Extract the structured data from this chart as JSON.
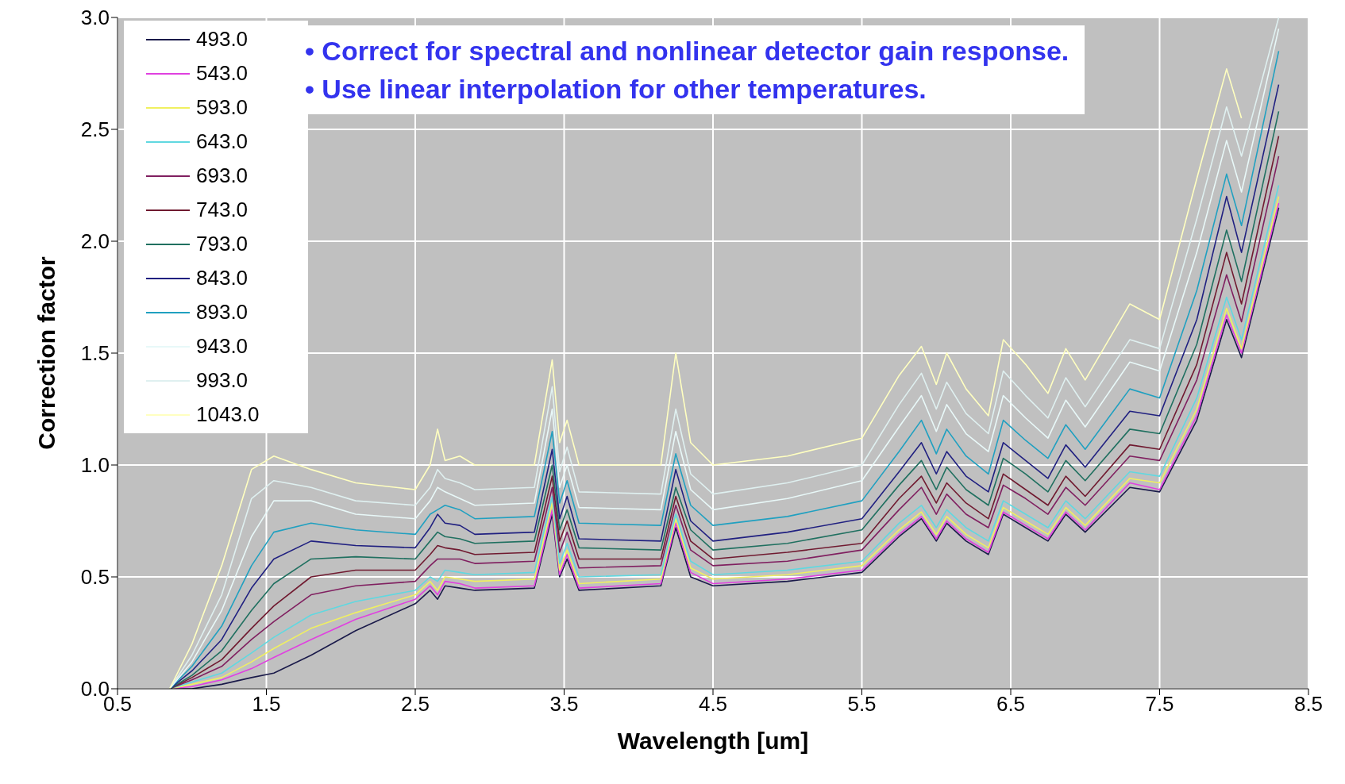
{
  "chart_data": {
    "type": "line",
    "xlabel": "Wavelength [um]",
    "ylabel": "Correction factor",
    "annotations": [
      "• Correct for spectral and nonlinear detector gain response.",
      "• Use linear interpolation for other temperatures."
    ],
    "x": [
      0.85,
      1.0,
      1.2,
      1.4,
      1.55,
      1.8,
      2.1,
      2.5,
      2.6,
      2.65,
      2.7,
      2.8,
      2.9,
      3.3,
      3.42,
      3.47,
      3.52,
      3.6,
      4.15,
      4.25,
      4.35,
      4.5,
      5.0,
      5.5,
      5.75,
      5.9,
      6.0,
      6.07,
      6.2,
      6.35,
      6.45,
      6.6,
      6.75,
      6.87,
      7.0,
      7.3,
      7.5,
      7.75,
      7.95,
      8.05,
      8.3
    ],
    "series": [
      {
        "name": "493.0",
        "color": "#1a1a4a",
        "values": [
          0,
          0,
          0.02,
          0.05,
          0.07,
          0.15,
          0.26,
          0.38,
          0.44,
          0.4,
          0.46,
          0.45,
          0.44,
          0.45,
          0.78,
          0.5,
          0.58,
          0.44,
          0.46,
          0.72,
          0.5,
          0.46,
          0.48,
          0.52,
          0.68,
          0.76,
          0.66,
          0.74,
          0.66,
          0.6,
          0.78,
          0.72,
          0.66,
          0.78,
          0.7,
          0.9,
          0.88,
          1.2,
          1.65,
          1.48,
          2.15
        ]
      },
      {
        "name": "543.0",
        "color": "#e040e0",
        "values": [
          0,
          0.01,
          0.04,
          0.09,
          0.14,
          0.22,
          0.31,
          0.4,
          0.46,
          0.42,
          0.48,
          0.47,
          0.45,
          0.46,
          0.8,
          0.51,
          0.6,
          0.45,
          0.47,
          0.74,
          0.52,
          0.47,
          0.49,
          0.53,
          0.69,
          0.77,
          0.67,
          0.75,
          0.67,
          0.61,
          0.79,
          0.73,
          0.67,
          0.79,
          0.71,
          0.92,
          0.89,
          1.22,
          1.67,
          1.5,
          2.17
        ]
      },
      {
        "name": "593.0",
        "color": "#f0f060",
        "values": [
          0,
          0.02,
          0.05,
          0.12,
          0.18,
          0.27,
          0.34,
          0.42,
          0.48,
          0.44,
          0.5,
          0.49,
          0.48,
          0.49,
          0.83,
          0.53,
          0.62,
          0.47,
          0.49,
          0.76,
          0.54,
          0.49,
          0.51,
          0.55,
          0.71,
          0.79,
          0.69,
          0.77,
          0.69,
          0.63,
          0.81,
          0.75,
          0.69,
          0.81,
          0.73,
          0.94,
          0.92,
          1.25,
          1.7,
          1.52,
          2.2
        ]
      },
      {
        "name": "643.0",
        "color": "#60d8e0",
        "values": [
          0,
          0.03,
          0.07,
          0.16,
          0.23,
          0.33,
          0.39,
          0.44,
          0.5,
          0.48,
          0.53,
          0.52,
          0.51,
          0.52,
          0.86,
          0.56,
          0.65,
          0.5,
          0.51,
          0.78,
          0.57,
          0.51,
          0.53,
          0.57,
          0.74,
          0.82,
          0.72,
          0.8,
          0.72,
          0.66,
          0.84,
          0.78,
          0.72,
          0.84,
          0.76,
          0.97,
          0.95,
          1.3,
          1.75,
          1.56,
          2.25
        ]
      },
      {
        "name": "693.0",
        "color": "#802060",
        "values": [
          0,
          0.04,
          0.1,
          0.22,
          0.3,
          0.42,
          0.46,
          0.48,
          0.55,
          0.58,
          0.58,
          0.58,
          0.56,
          0.57,
          0.9,
          0.61,
          0.7,
          0.54,
          0.55,
          0.82,
          0.62,
          0.55,
          0.57,
          0.62,
          0.8,
          0.9,
          0.78,
          0.87,
          0.78,
          0.72,
          0.91,
          0.85,
          0.78,
          0.9,
          0.82,
          1.04,
          1.02,
          1.38,
          1.85,
          1.64,
          2.38
        ]
      },
      {
        "name": "743.0",
        "color": "#701a30",
        "values": [
          0,
          0.05,
          0.13,
          0.27,
          0.37,
          0.5,
          0.53,
          0.53,
          0.6,
          0.64,
          0.63,
          0.62,
          0.6,
          0.61,
          0.95,
          0.66,
          0.75,
          0.58,
          0.58,
          0.86,
          0.66,
          0.58,
          0.61,
          0.65,
          0.85,
          0.95,
          0.83,
          0.92,
          0.83,
          0.76,
          0.96,
          0.89,
          0.82,
          0.95,
          0.86,
          1.09,
          1.07,
          1.45,
          1.95,
          1.72,
          2.47
        ]
      },
      {
        "name": "793.0",
        "color": "#207060",
        "values": [
          0,
          0.06,
          0.17,
          0.35,
          0.47,
          0.58,
          0.59,
          0.58,
          0.66,
          0.7,
          0.68,
          0.67,
          0.65,
          0.66,
          1.0,
          0.71,
          0.8,
          0.63,
          0.62,
          0.9,
          0.71,
          0.62,
          0.65,
          0.71,
          0.91,
          1.02,
          0.89,
          0.99,
          0.89,
          0.82,
          1.03,
          0.96,
          0.88,
          1.02,
          0.93,
          1.16,
          1.14,
          1.54,
          2.05,
          1.82,
          2.58
        ]
      },
      {
        "name": "843.0",
        "color": "#202080",
        "values": [
          0,
          0.08,
          0.22,
          0.45,
          0.58,
          0.66,
          0.64,
          0.63,
          0.72,
          0.78,
          0.74,
          0.73,
          0.69,
          0.7,
          1.07,
          0.76,
          0.86,
          0.67,
          0.66,
          0.98,
          0.75,
          0.66,
          0.7,
          0.76,
          0.97,
          1.1,
          0.96,
          1.06,
          0.95,
          0.88,
          1.1,
          1.02,
          0.94,
          1.09,
          0.99,
          1.24,
          1.22,
          1.65,
          2.2,
          1.95,
          2.7
        ]
      },
      {
        "name": "893.0",
        "color": "#20a0c0",
        "values": [
          0,
          0.1,
          0.28,
          0.55,
          0.7,
          0.74,
          0.71,
          0.69,
          0.78,
          0.8,
          0.82,
          0.8,
          0.76,
          0.77,
          1.15,
          0.83,
          0.93,
          0.74,
          0.73,
          1.05,
          0.82,
          0.73,
          0.77,
          0.84,
          1.06,
          1.2,
          1.05,
          1.16,
          1.04,
          0.96,
          1.2,
          1.11,
          1.03,
          1.18,
          1.07,
          1.34,
          1.3,
          1.78,
          2.3,
          2.07,
          2.85
        ]
      },
      {
        "name": "943.0",
        "color": "#e8f8f8",
        "values": [
          0,
          0.12,
          0.35,
          0.68,
          0.84,
          0.84,
          0.78,
          0.76,
          0.84,
          0.9,
          0.88,
          0.85,
          0.82,
          0.83,
          1.25,
          0.9,
          1.0,
          0.81,
          0.8,
          1.15,
          0.89,
          0.8,
          0.85,
          0.93,
          1.17,
          1.31,
          1.15,
          1.27,
          1.14,
          1.06,
          1.31,
          1.21,
          1.12,
          1.29,
          1.17,
          1.46,
          1.42,
          1.95,
          2.45,
          2.22,
          2.95
        ]
      },
      {
        "name": "993.0",
        "color": "#dff0f0",
        "values": [
          0,
          0.15,
          0.42,
          0.85,
          0.93,
          0.9,
          0.84,
          0.82,
          0.9,
          0.98,
          0.94,
          0.92,
          0.89,
          0.9,
          1.35,
          0.97,
          1.08,
          0.88,
          0.87,
          1.25,
          0.96,
          0.87,
          0.92,
          1.0,
          1.27,
          1.41,
          1.25,
          1.37,
          1.23,
          1.14,
          1.42,
          1.31,
          1.21,
          1.39,
          1.26,
          1.56,
          1.52,
          2.1,
          2.6,
          2.38,
          3.0
        ]
      },
      {
        "name": "1043.0",
        "color": "#ffffc0",
        "values": [
          0,
          0.2,
          0.55,
          0.98,
          1.04,
          0.98,
          0.92,
          0.89,
          1.0,
          1.16,
          1.02,
          1.04,
          1.0,
          1.0,
          1.47,
          1.1,
          1.2,
          1.0,
          1.0,
          1.5,
          1.1,
          1.0,
          1.04,
          1.12,
          1.4,
          1.53,
          1.36,
          1.5,
          1.34,
          1.22,
          1.56,
          1.45,
          1.32,
          1.52,
          1.38,
          1.72,
          1.65,
          2.28,
          2.77,
          2.55,
          null
        ]
      }
    ],
    "xlim": [
      0.5,
      8.5
    ],
    "xticks": [
      0.5,
      1.5,
      2.5,
      3.5,
      4.5,
      5.5,
      6.5,
      7.5,
      8.5
    ],
    "ylim": [
      0,
      3
    ],
    "yticks": [
      {
        "value": 0,
        "label": "0.0"
      },
      {
        "value": 0.5,
        "label": "0.5"
      },
      {
        "value": 1,
        "label": "1.0"
      },
      {
        "value": 1.5,
        "label": "1.5"
      },
      {
        "value": 2,
        "label": "2.0"
      },
      {
        "value": 2.5,
        "label": "2.5"
      },
      {
        "value": 3,
        "label": "3.0"
      }
    ],
    "grid": true,
    "legend": "top left"
  }
}
